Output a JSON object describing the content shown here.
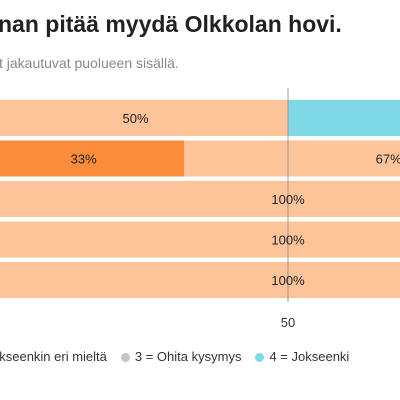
{
  "chart_data": {
    "type": "bar",
    "orientation": "horizontal",
    "stacked": true,
    "title": "nan pitää myydä Olkkolan hovi.",
    "subtitle": "t jakautuvat puolueen sisällä.",
    "xlim": [
      0,
      100
    ],
    "x_ticks": [
      "50"
    ],
    "grid": false,
    "legend_position": "bottom",
    "rows": [
      {
        "segments": [
          {
            "series": "2",
            "value": 50,
            "label": "50%"
          },
          {
            "series": "4",
            "value": 50,
            "label": ""
          }
        ]
      },
      {
        "segments": [
          {
            "series": "1",
            "value": 33,
            "label": "33%"
          },
          {
            "series": "2",
            "value": 67,
            "label": "67%"
          }
        ]
      },
      {
        "segments": [
          {
            "series": "2",
            "value": 100,
            "label": "100%"
          }
        ]
      },
      {
        "segments": [
          {
            "series": "2",
            "value": 100,
            "label": "100%"
          }
        ]
      },
      {
        "segments": [
          {
            "series": "2",
            "value": 100,
            "label": "100%"
          }
        ]
      }
    ],
    "series": [
      {
        "id": "1",
        "name": "",
        "color": "#fb8c39"
      },
      {
        "id": "2",
        "name": "okseenkin eri mieltä",
        "color": "#fdc49a"
      },
      {
        "id": "3",
        "name": "3 = Ohita kysymys",
        "color": "#c4c4c4"
      },
      {
        "id": "4",
        "name": "4 = Jokseenki",
        "color": "#7fd8e6"
      }
    ]
  }
}
